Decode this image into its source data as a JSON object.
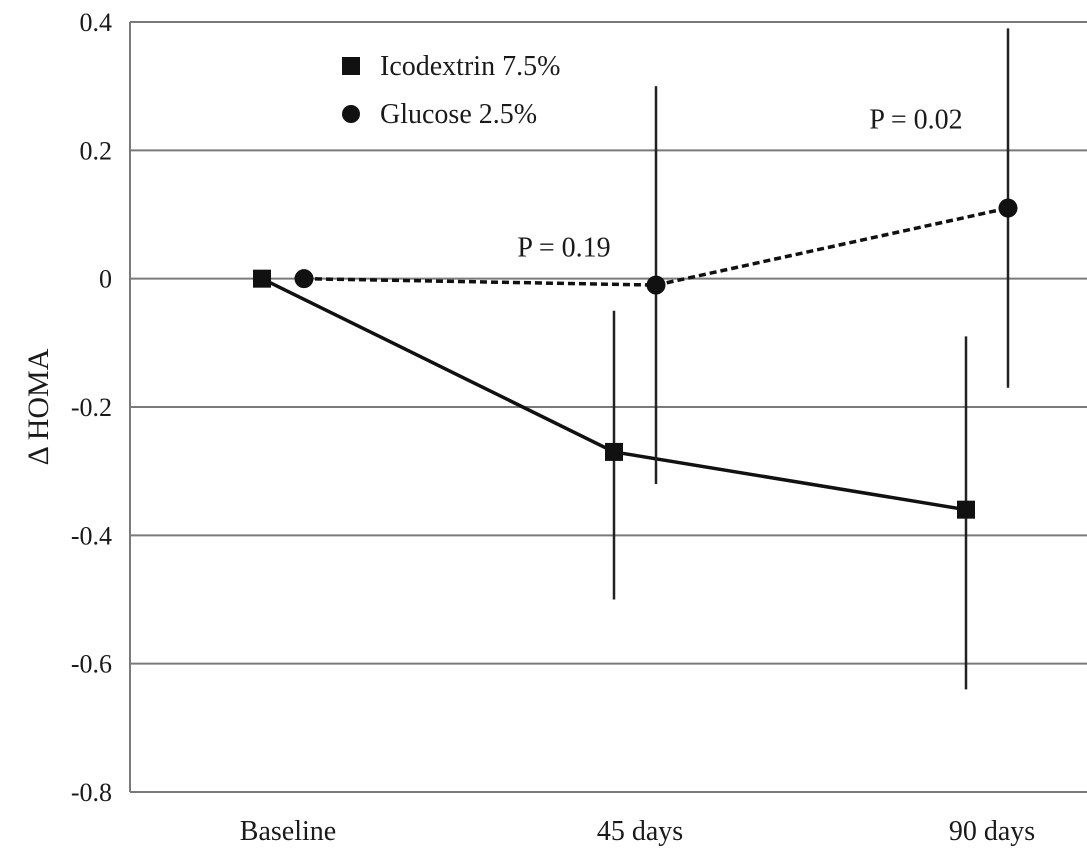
{
  "chart_data": {
    "type": "line",
    "ylabel": "Δ HOMA",
    "xlabel": "",
    "categories": [
      "Baseline",
      "45 days",
      "90 days"
    ],
    "ylim": [
      -0.8,
      0.4
    ],
    "yticks": [
      0.4,
      0.2,
      0,
      -0.2,
      -0.4,
      -0.6,
      -0.8
    ],
    "ytick_labels": [
      "0.4",
      "0.2",
      "0",
      "-0.2",
      "-0.4",
      "-0.6",
      "-0.8"
    ],
    "grid": true,
    "legend_position": "top-left",
    "series": [
      {
        "name": "Icodextrin 7.5%",
        "marker": "square",
        "line_style": "solid",
        "color": "#111111",
        "values": [
          0.0,
          -0.27,
          -0.36
        ],
        "error_low": [
          null,
          -0.5,
          -0.64
        ],
        "error_high": [
          null,
          -0.05,
          -0.09
        ]
      },
      {
        "name": "Glucose 2.5%",
        "marker": "circle",
        "line_style": "dashed",
        "color": "#111111",
        "values": [
          0.0,
          -0.01,
          0.11
        ],
        "error_low": [
          null,
          -0.32,
          -0.17
        ],
        "error_high": [
          null,
          0.3,
          0.39
        ]
      }
    ],
    "annotations": [
      {
        "text": "P = 0.19",
        "category_index": 1,
        "y": 0.05
      },
      {
        "text": "P = 0.02",
        "category_index": 2,
        "y": 0.25
      }
    ]
  }
}
